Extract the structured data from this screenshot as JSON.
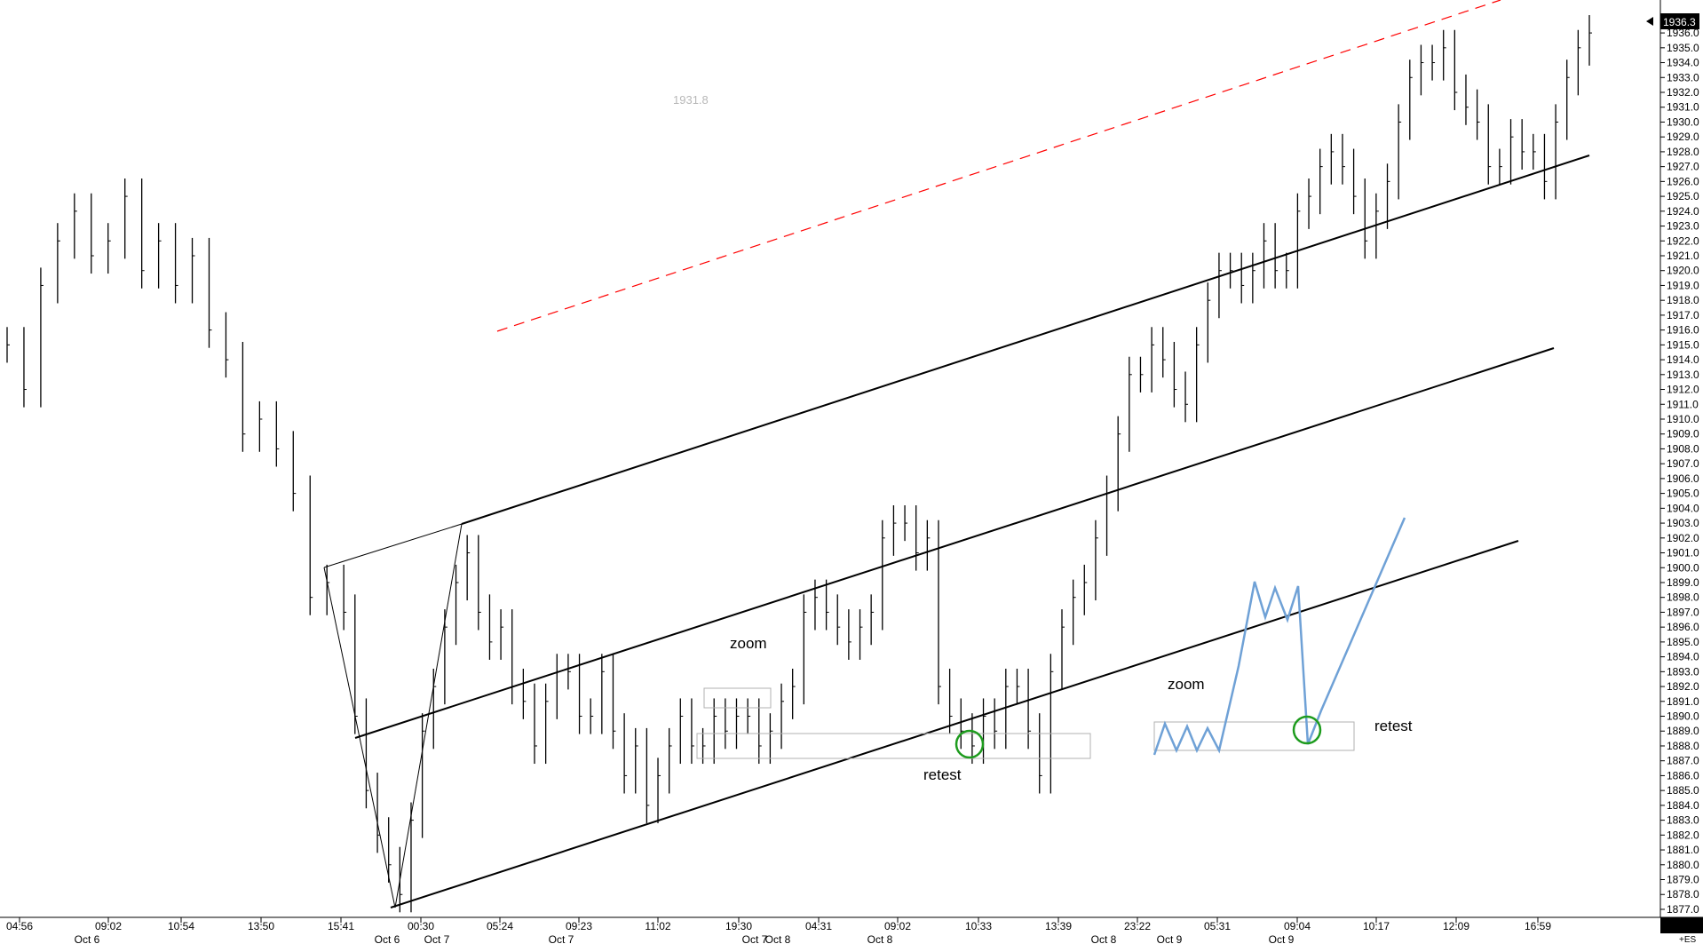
{
  "chart_data": {
    "type": "bar",
    "title": "",
    "xlabel": "",
    "ylabel": "",
    "ylim": [
      1876.4,
      1937.5
    ],
    "y_ticks": [
      1877,
      1878,
      1879,
      1880,
      1881,
      1882,
      1883,
      1884,
      1885,
      1886,
      1887,
      1888,
      1889,
      1890,
      1891,
      1892,
      1893,
      1894,
      1895,
      1896,
      1897,
      1898,
      1899,
      1900,
      1901,
      1902,
      1903,
      1904,
      1905,
      1906,
      1907,
      1908,
      1909,
      1910,
      1911,
      1912,
      1913,
      1914,
      1915,
      1916,
      1917,
      1918,
      1919,
      1920,
      1921,
      1922,
      1923,
      1924,
      1925,
      1926,
      1927,
      1928,
      1929,
      1930,
      1931,
      1932,
      1933,
      1934,
      1935,
      1936,
      1937
    ],
    "time_labels": [
      "04:56",
      "09:02",
      "10:54",
      "13:50",
      "15:41",
      "00:30",
      "05:24",
      "09:23",
      "11:02",
      "19:30",
      "04:31",
      "09:02",
      "10:33",
      "13:39",
      "23:22",
      "05:31",
      "09:04",
      "10:17",
      "12:09",
      "16:59"
    ],
    "date_labels": [
      "Oct 6",
      "Oct 6",
      "Oct 7",
      "Oct 7",
      "Oct 7",
      "Oct 8",
      "Oct 8",
      "Oct 8",
      "Oct 9",
      "Oct 9"
    ],
    "last_price": "1936.3",
    "symbol": "+ES",
    "price_marker": "1931.8",
    "series": [
      {
        "x": [
          0,
          15,
          30,
          45,
          60,
          75,
          90,
          105,
          120,
          135,
          150,
          165,
          180,
          195,
          210,
          225,
          240,
          255,
          270,
          285,
          300,
          310,
          320,
          330,
          340,
          350,
          360,
          370,
          380,
          390,
          400,
          410,
          420,
          430,
          440,
          450,
          460,
          470,
          480,
          490,
          500,
          510,
          520,
          530,
          540,
          550,
          560,
          570,
          580,
          590,
          600,
          610,
          620,
          630,
          640,
          650,
          660,
          670,
          680,
          690,
          700,
          710,
          720,
          730,
          740,
          750,
          760,
          770,
          780,
          790,
          800,
          810,
          820,
          830,
          840,
          850,
          860,
          870,
          880,
          890,
          900,
          910,
          920,
          930,
          940,
          950,
          960,
          970,
          980,
          990,
          1000,
          1010,
          1020,
          1030,
          1040,
          1050,
          1060,
          1070,
          1080,
          1090,
          1100,
          1110,
          1120,
          1130,
          1140,
          1150,
          1160,
          1170,
          1180,
          1190,
          1200,
          1210,
          1220,
          1230,
          1240,
          1250,
          1260,
          1270,
          1280,
          1290,
          1300,
          1310,
          1320,
          1330,
          1340,
          1350,
          1360,
          1370,
          1380,
          1390,
          1400,
          1410
        ],
        "values": [
          1915,
          1912,
          1919,
          1922,
          1924,
          1921,
          1922,
          1925,
          1920,
          1922,
          1919,
          1921,
          1916,
          1914,
          1909,
          1910,
          1908,
          1905,
          1898,
          1899,
          1897,
          1890,
          1885,
          1882,
          1880,
          1878,
          1883,
          1889,
          1892,
          1896,
          1899,
          1901,
          1897,
          1895,
          1896,
          1892,
          1891,
          1888,
          1891,
          1893,
          1893,
          1890,
          1890,
          1893,
          1889,
          1886,
          1888,
          1884,
          1886,
          1888,
          1890,
          1888,
          1888,
          1890,
          1889,
          1890,
          1890,
          1888,
          1889,
          1891,
          1892,
          1897,
          1898,
          1897,
          1896,
          1895,
          1896,
          1897,
          1902,
          1903,
          1903,
          1901,
          1902,
          1892,
          1890,
          1889,
          1888,
          1890,
          1889,
          1892,
          1892,
          1889,
          1886,
          1893,
          1896,
          1898,
          1899,
          1902,
          1905,
          1909,
          1913,
          1913,
          1915,
          1914,
          1912,
          1911,
          1915,
          1918,
          1920,
          1920,
          1919,
          1920,
          1922,
          1920,
          1920,
          1924,
          1925,
          1927,
          1928,
          1927,
          1925,
          1922,
          1924,
          1926,
          1930,
          1933,
          1934,
          1934,
          1935,
          1932,
          1931,
          1930,
          1927,
          1927,
          1929,
          1928,
          1928,
          1926,
          1930,
          1933,
          1935,
          1936
        ]
      }
    ],
    "annotations": [
      "zoom",
      "zoom",
      "retest",
      "retest"
    ]
  }
}
